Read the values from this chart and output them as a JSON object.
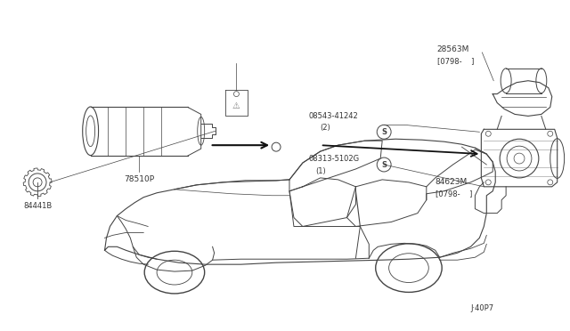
{
  "bg_color": "#ffffff",
  "fig_width": 6.4,
  "fig_height": 3.72,
  "dpi": 100,
  "line_color": "#444444",
  "text_color": "#333333",
  "label_84441B": "84441B",
  "label_78510P": "78510P",
  "label_28563M": "28563M",
  "label_d0798_1": "[0798-    ]",
  "label_08543": "08543-41242",
  "label_qty2": "(2)",
  "label_08313": "08313-5102G",
  "label_qty1": "（1）",
  "label_84623M": "84623M",
  "label_d0798_2": "[0798-    ]",
  "label_j40p7": "J·40P7"
}
